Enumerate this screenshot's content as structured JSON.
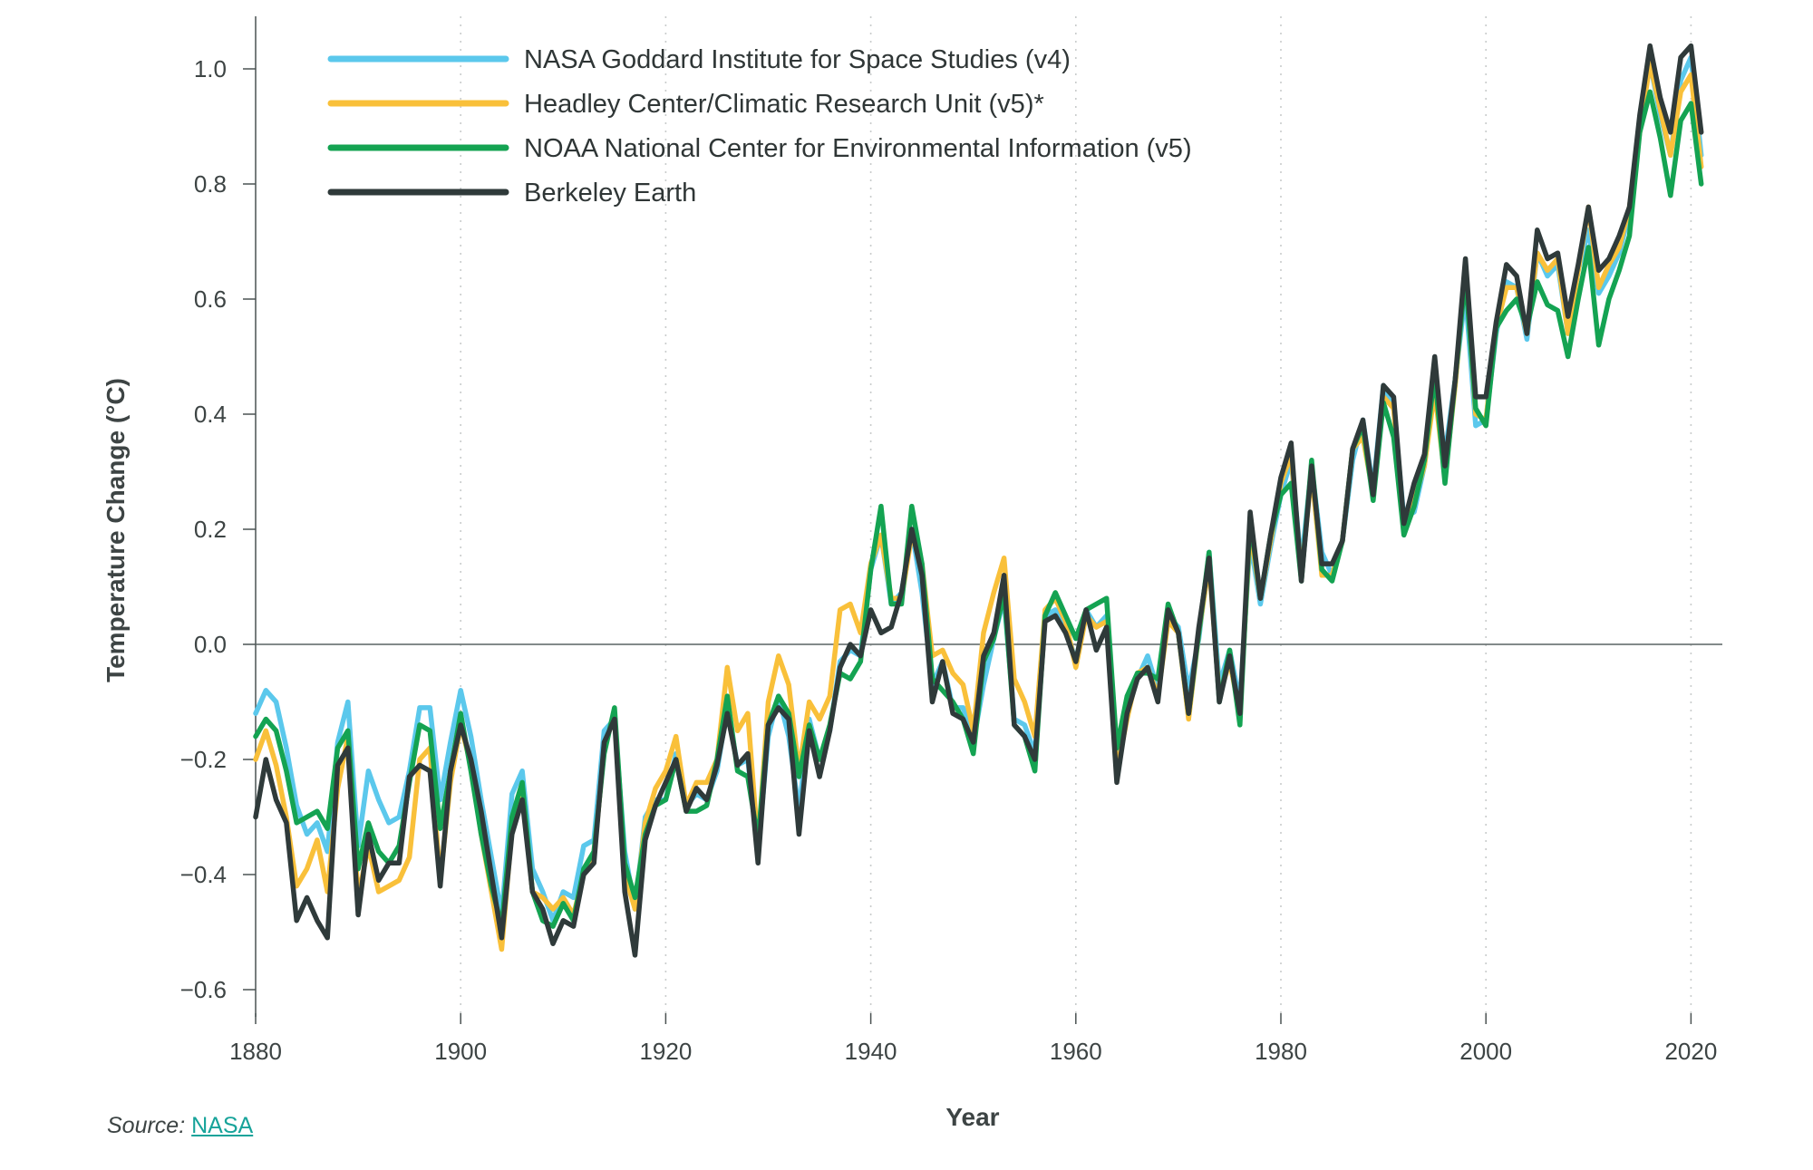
{
  "chart_data": {
    "type": "line",
    "xlabel": "Year",
    "ylabel": "Temperature Change (°C)",
    "xlim": [
      1880,
      2023
    ],
    "ylim": [
      -0.65,
      1.1
    ],
    "x_ticks": [
      1880,
      1900,
      1920,
      1940,
      1960,
      1980,
      2000,
      2020
    ],
    "y_ticks": [
      -0.6,
      -0.4,
      -0.2,
      0.0,
      0.2,
      0.4,
      0.6,
      0.8,
      1.0
    ],
    "y_tick_labels": [
      "−0.6",
      "−0.4",
      "−0.2",
      "0.0",
      "0.2",
      "0.4",
      "0.6",
      "0.8",
      "1.0"
    ],
    "x_tick_labels": [
      "1880",
      "1900",
      "1920",
      "1940",
      "1960",
      "1980",
      "2000",
      "2020"
    ],
    "grid": "vertical dotted at x ticks",
    "reference_line": 0.0,
    "legend_position": "top-left",
    "x_start": 1880,
    "series": [
      {
        "name": "NASA Goddard Institute for Space Studies (v4)",
        "color": "#5bc8ec",
        "values": [
          -0.12,
          -0.08,
          -0.1,
          -0.18,
          -0.28,
          -0.33,
          -0.31,
          -0.36,
          -0.17,
          -0.1,
          -0.35,
          -0.22,
          -0.27,
          -0.31,
          -0.3,
          -0.22,
          -0.11,
          -0.11,
          -0.27,
          -0.17,
          -0.08,
          -0.16,
          -0.27,
          -0.37,
          -0.47,
          -0.26,
          -0.22,
          -0.39,
          -0.43,
          -0.48,
          -0.43,
          -0.44,
          -0.35,
          -0.34,
          -0.15,
          -0.13,
          -0.36,
          -0.46,
          -0.3,
          -0.27,
          -0.27,
          -0.19,
          -0.28,
          -0.26,
          -0.27,
          -0.22,
          -0.11,
          -0.21,
          -0.2,
          -0.36,
          -0.16,
          -0.09,
          -0.16,
          -0.29,
          -0.13,
          -0.2,
          -0.15,
          -0.03,
          -0.01,
          -0.02,
          0.13,
          0.19,
          0.07,
          0.09,
          0.2,
          0.09,
          -0.07,
          -0.03,
          -0.11,
          -0.11,
          -0.17,
          -0.07,
          0.01,
          0.08,
          -0.13,
          -0.14,
          -0.19,
          0.05,
          0.06,
          0.03,
          -0.03,
          0.06,
          0.03,
          0.05,
          -0.2,
          -0.11,
          -0.06,
          -0.02,
          -0.08,
          0.05,
          0.03,
          -0.08,
          0.01,
          0.16,
          -0.07,
          -0.01,
          -0.1,
          0.18,
          0.07,
          0.17,
          0.26,
          0.32,
          0.14,
          0.31,
          0.16,
          0.12,
          0.18,
          0.32,
          0.39,
          0.27,
          0.45,
          0.41,
          0.22,
          0.23,
          0.31,
          0.45,
          0.33,
          0.46,
          0.61,
          0.38,
          0.39,
          0.54,
          0.63,
          0.62,
          0.53,
          0.68,
          0.64,
          0.66,
          0.54,
          0.65,
          0.72,
          0.61,
          0.64,
          0.68,
          0.75,
          0.9,
          1.01,
          0.92,
          0.85,
          0.98,
          1.02,
          0.85
        ]
      },
      {
        "name": "Headley Center/Climatic Research Unit (v5)*",
        "color": "#f9c03a",
        "values": [
          -0.2,
          -0.15,
          -0.21,
          -0.3,
          -0.42,
          -0.39,
          -0.34,
          -0.43,
          -0.25,
          -0.16,
          -0.44,
          -0.35,
          -0.43,
          -0.42,
          -0.41,
          -0.37,
          -0.2,
          -0.18,
          -0.41,
          -0.24,
          -0.14,
          -0.21,
          -0.33,
          -0.43,
          -0.53,
          -0.32,
          -0.25,
          -0.43,
          -0.44,
          -0.46,
          -0.44,
          -0.47,
          -0.4,
          -0.37,
          -0.18,
          -0.12,
          -0.4,
          -0.46,
          -0.31,
          -0.25,
          -0.22,
          -0.16,
          -0.28,
          -0.24,
          -0.24,
          -0.2,
          -0.04,
          -0.15,
          -0.12,
          -0.35,
          -0.1,
          -0.02,
          -0.07,
          -0.22,
          -0.1,
          -0.13,
          -0.09,
          0.06,
          0.07,
          0.02,
          0.14,
          0.19,
          0.08,
          0.08,
          0.19,
          0.14,
          -0.02,
          -0.01,
          -0.05,
          -0.07,
          -0.15,
          0.02,
          0.09,
          0.15,
          -0.06,
          -0.1,
          -0.16,
          0.06,
          0.08,
          0.04,
          -0.04,
          0.05,
          0.03,
          0.04,
          -0.22,
          -0.13,
          -0.05,
          -0.04,
          -0.09,
          0.04,
          0.02,
          -0.13,
          0.02,
          0.14,
          -0.09,
          -0.03,
          -0.12,
          0.2,
          0.08,
          0.18,
          0.28,
          0.33,
          0.12,
          0.3,
          0.12,
          0.12,
          0.18,
          0.34,
          0.36,
          0.26,
          0.43,
          0.41,
          0.2,
          0.25,
          0.31,
          0.44,
          0.29,
          0.45,
          0.65,
          0.4,
          0.39,
          0.55,
          0.62,
          0.62,
          0.54,
          0.68,
          0.65,
          0.67,
          0.54,
          0.65,
          0.76,
          0.62,
          0.66,
          0.69,
          0.76,
          0.89,
          1.01,
          0.93,
          0.85,
          0.96,
          0.99,
          0.83
        ]
      },
      {
        "name": "NOAA National Center for Environmental Information (v5)",
        "color": "#14a352",
        "values": [
          -0.16,
          -0.13,
          -0.15,
          -0.22,
          -0.31,
          -0.3,
          -0.29,
          -0.32,
          -0.18,
          -0.15,
          -0.39,
          -0.31,
          -0.36,
          -0.38,
          -0.35,
          -0.24,
          -0.14,
          -0.15,
          -0.32,
          -0.22,
          -0.12,
          -0.22,
          -0.33,
          -0.42,
          -0.49,
          -0.3,
          -0.24,
          -0.43,
          -0.48,
          -0.49,
          -0.45,
          -0.48,
          -0.39,
          -0.36,
          -0.19,
          -0.11,
          -0.38,
          -0.44,
          -0.33,
          -0.28,
          -0.27,
          -0.2,
          -0.29,
          -0.29,
          -0.28,
          -0.2,
          -0.09,
          -0.22,
          -0.23,
          -0.34,
          -0.14,
          -0.09,
          -0.12,
          -0.23,
          -0.14,
          -0.2,
          -0.14,
          -0.05,
          -0.06,
          -0.03,
          0.13,
          0.24,
          0.07,
          0.07,
          0.24,
          0.14,
          -0.06,
          -0.08,
          -0.1,
          -0.13,
          -0.19,
          -0.03,
          0.01,
          0.09,
          -0.14,
          -0.16,
          -0.22,
          0.05,
          0.09,
          0.05,
          0.01,
          0.06,
          0.07,
          0.08,
          -0.18,
          -0.09,
          -0.05,
          -0.05,
          -0.06,
          0.07,
          0.02,
          -0.12,
          0.02,
          0.16,
          -0.1,
          -0.01,
          -0.14,
          0.22,
          0.08,
          0.19,
          0.26,
          0.28,
          0.11,
          0.32,
          0.13,
          0.11,
          0.18,
          0.34,
          0.38,
          0.25,
          0.42,
          0.36,
          0.19,
          0.24,
          0.32,
          0.47,
          0.28,
          0.46,
          0.64,
          0.41,
          0.38,
          0.55,
          0.58,
          0.6,
          0.55,
          0.63,
          0.59,
          0.58,
          0.5,
          0.6,
          0.69,
          0.52,
          0.6,
          0.65,
          0.71,
          0.89,
          0.96,
          0.88,
          0.78,
          0.91,
          0.94,
          0.8
        ]
      },
      {
        "name": "Berkeley Earth",
        "color": "#2f3a3a",
        "values": [
          -0.3,
          -0.2,
          -0.27,
          -0.31,
          -0.48,
          -0.44,
          -0.48,
          -0.51,
          -0.21,
          -0.18,
          -0.47,
          -0.33,
          -0.41,
          -0.38,
          -0.38,
          -0.23,
          -0.21,
          -0.22,
          -0.42,
          -0.22,
          -0.14,
          -0.2,
          -0.29,
          -0.4,
          -0.51,
          -0.33,
          -0.27,
          -0.43,
          -0.46,
          -0.52,
          -0.48,
          -0.49,
          -0.4,
          -0.38,
          -0.17,
          -0.13,
          -0.43,
          -0.54,
          -0.34,
          -0.28,
          -0.24,
          -0.2,
          -0.29,
          -0.25,
          -0.27,
          -0.21,
          -0.12,
          -0.21,
          -0.19,
          -0.38,
          -0.14,
          -0.11,
          -0.13,
          -0.33,
          -0.15,
          -0.23,
          -0.15,
          -0.04,
          0.0,
          -0.02,
          0.06,
          0.02,
          0.03,
          0.09,
          0.2,
          0.12,
          -0.1,
          -0.03,
          -0.12,
          -0.13,
          -0.17,
          -0.02,
          0.02,
          0.12,
          -0.14,
          -0.16,
          -0.2,
          0.04,
          0.05,
          0.02,
          -0.03,
          0.06,
          -0.01,
          0.03,
          -0.24,
          -0.12,
          -0.06,
          -0.04,
          -0.1,
          0.06,
          0.02,
          -0.12,
          0.03,
          0.15,
          -0.1,
          -0.02,
          -0.12,
          0.23,
          0.08,
          0.19,
          0.29,
          0.35,
          0.11,
          0.31,
          0.14,
          0.14,
          0.18,
          0.34,
          0.39,
          0.26,
          0.45,
          0.43,
          0.21,
          0.28,
          0.33,
          0.5,
          0.31,
          0.46,
          0.67,
          0.43,
          0.43,
          0.56,
          0.66,
          0.64,
          0.54,
          0.72,
          0.67,
          0.68,
          0.57,
          0.66,
          0.76,
          0.65,
          0.67,
          0.71,
          0.76,
          0.92,
          1.04,
          0.95,
          0.89,
          1.02,
          1.04,
          0.89
        ]
      }
    ]
  },
  "source": {
    "prefix": "Source:",
    "link_text": "NASA"
  }
}
